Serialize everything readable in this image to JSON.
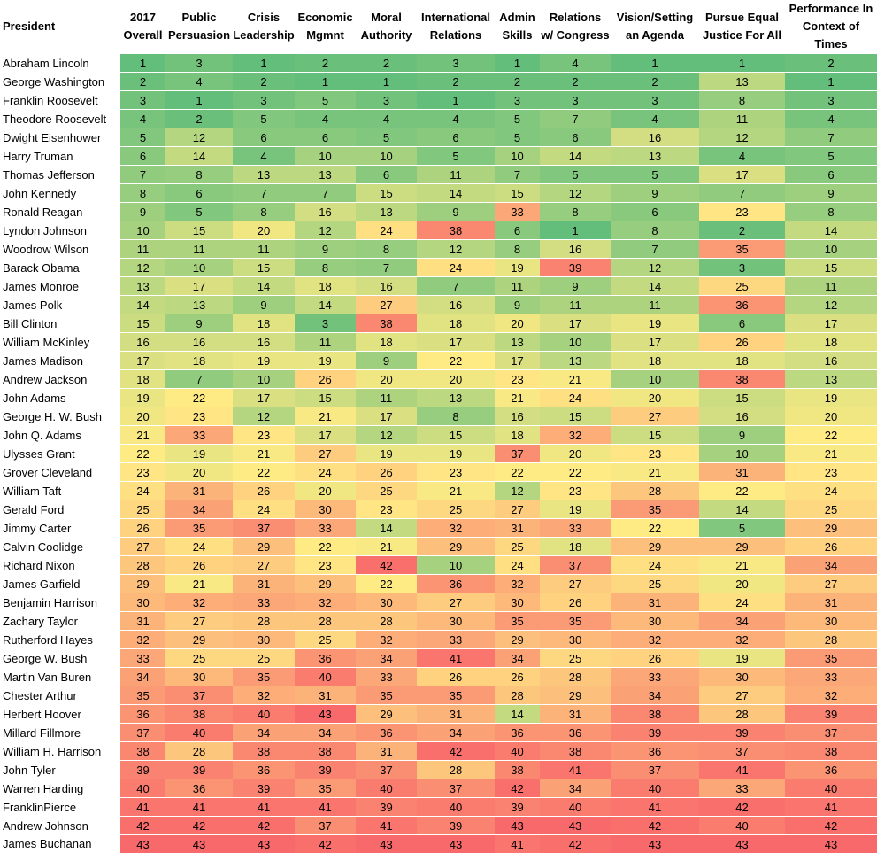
{
  "chart_data": {
    "type": "table",
    "row_header_label": "President",
    "columns": [
      [
        "2017",
        "Overall"
      ],
      [
        "Public",
        "Persuasion"
      ],
      [
        "Crisis",
        "Leadership"
      ],
      [
        "Economic",
        "Mgmnt"
      ],
      [
        "Moral",
        "Authority"
      ],
      [
        "International",
        "Relations"
      ],
      [
        "Admin",
        "Skills"
      ],
      [
        "Relations",
        "w/ Congress"
      ],
      [
        "Vision/Setting",
        "an Agenda"
      ],
      [
        "Pursue Equal",
        "Justice For All"
      ],
      [
        "Performance In",
        "Context of Times"
      ]
    ],
    "rows": [
      {
        "name": "Abraham Lincoln",
        "values": [
          1,
          3,
          1,
          2,
          2,
          3,
          1,
          4,
          1,
          1,
          2
        ]
      },
      {
        "name": "George Washington",
        "values": [
          2,
          4,
          2,
          1,
          1,
          2,
          2,
          2,
          2,
          13,
          1
        ]
      },
      {
        "name": "Franklin Roosevelt",
        "values": [
          3,
          1,
          3,
          5,
          3,
          1,
          3,
          3,
          3,
          8,
          3
        ]
      },
      {
        "name": "Theodore Roosevelt",
        "values": [
          4,
          2,
          5,
          4,
          4,
          4,
          5,
          7,
          4,
          11,
          4
        ]
      },
      {
        "name": "Dwight Eisenhower",
        "values": [
          5,
          12,
          6,
          6,
          5,
          6,
          5,
          6,
          16,
          12,
          7
        ]
      },
      {
        "name": "Harry Truman",
        "values": [
          6,
          14,
          4,
          10,
          10,
          5,
          10,
          14,
          13,
          4,
          5
        ]
      },
      {
        "name": "Thomas Jefferson",
        "values": [
          7,
          8,
          13,
          13,
          6,
          11,
          7,
          5,
          5,
          17,
          6
        ]
      },
      {
        "name": "John Kennedy",
        "values": [
          8,
          6,
          7,
          7,
          15,
          14,
          15,
          12,
          9,
          7,
          9
        ]
      },
      {
        "name": "Ronald Reagan",
        "values": [
          9,
          5,
          8,
          16,
          13,
          9,
          33,
          8,
          6,
          23,
          8
        ]
      },
      {
        "name": "Lyndon Johnson",
        "values": [
          10,
          15,
          20,
          12,
          24,
          38,
          6,
          1,
          8,
          2,
          14
        ]
      },
      {
        "name": "Woodrow Wilson",
        "values": [
          11,
          11,
          11,
          9,
          8,
          12,
          8,
          16,
          7,
          35,
          10
        ]
      },
      {
        "name": "Barack Obama",
        "values": [
          12,
          10,
          15,
          8,
          7,
          24,
          19,
          39,
          12,
          3,
          15
        ]
      },
      {
        "name": "James Monroe",
        "values": [
          13,
          17,
          14,
          18,
          16,
          7,
          11,
          9,
          14,
          25,
          11
        ]
      },
      {
        "name": "James Polk",
        "values": [
          14,
          13,
          9,
          14,
          27,
          16,
          9,
          11,
          11,
          36,
          12
        ]
      },
      {
        "name": "Bill Clinton",
        "values": [
          15,
          9,
          18,
          3,
          38,
          18,
          20,
          17,
          19,
          6,
          17
        ]
      },
      {
        "name": "William McKinley",
        "values": [
          16,
          16,
          16,
          11,
          18,
          17,
          13,
          10,
          17,
          26,
          18
        ]
      },
      {
        "name": "James Madison",
        "values": [
          17,
          18,
          19,
          19,
          9,
          22,
          17,
          13,
          18,
          18,
          16
        ]
      },
      {
        "name": "Andrew Jackson",
        "values": [
          18,
          7,
          10,
          26,
          20,
          20,
          23,
          21,
          10,
          38,
          13
        ]
      },
      {
        "name": "John Adams",
        "values": [
          19,
          22,
          17,
          15,
          11,
          13,
          21,
          24,
          20,
          15,
          19
        ]
      },
      {
        "name": "George H. W. Bush",
        "values": [
          20,
          23,
          12,
          21,
          17,
          8,
          16,
          15,
          27,
          16,
          20
        ]
      },
      {
        "name": "John Q. Adams",
        "values": [
          21,
          33,
          23,
          17,
          12,
          15,
          18,
          32,
          15,
          9,
          22
        ]
      },
      {
        "name": "Ulysses Grant",
        "values": [
          22,
          19,
          21,
          27,
          19,
          19,
          37,
          20,
          23,
          10,
          21
        ]
      },
      {
        "name": "Grover Cleveland",
        "values": [
          23,
          20,
          22,
          24,
          26,
          23,
          22,
          22,
          21,
          31,
          23
        ]
      },
      {
        "name": "William Taft",
        "values": [
          24,
          31,
          26,
          20,
          25,
          21,
          12,
          23,
          28,
          22,
          24
        ]
      },
      {
        "name": "Gerald Ford",
        "values": [
          25,
          34,
          24,
          30,
          23,
          25,
          27,
          19,
          35,
          14,
          25
        ]
      },
      {
        "name": "Jimmy Carter",
        "values": [
          26,
          35,
          37,
          33,
          14,
          32,
          31,
          33,
          22,
          5,
          29
        ]
      },
      {
        "name": "Calvin Coolidge",
        "values": [
          27,
          24,
          29,
          22,
          21,
          29,
          25,
          18,
          29,
          29,
          26
        ]
      },
      {
        "name": "Richard Nixon",
        "values": [
          28,
          26,
          27,
          23,
          42,
          10,
          24,
          37,
          24,
          21,
          34
        ]
      },
      {
        "name": "James Garfield",
        "values": [
          29,
          21,
          31,
          29,
          22,
          36,
          32,
          27,
          25,
          20,
          27
        ]
      },
      {
        "name": "Benjamin Harrison",
        "values": [
          30,
          32,
          33,
          32,
          30,
          27,
          30,
          26,
          31,
          24,
          31
        ]
      },
      {
        "name": "Zachary Taylor",
        "values": [
          31,
          27,
          28,
          28,
          28,
          30,
          35,
          35,
          30,
          34,
          30
        ]
      },
      {
        "name": "Rutherford Hayes",
        "values": [
          32,
          29,
          30,
          25,
          32,
          33,
          29,
          30,
          32,
          32,
          28
        ]
      },
      {
        "name": "George W. Bush",
        "values": [
          33,
          25,
          25,
          36,
          34,
          41,
          34,
          25,
          26,
          19,
          35
        ]
      },
      {
        "name": "Martin Van Buren",
        "values": [
          34,
          30,
          35,
          40,
          33,
          26,
          26,
          28,
          33,
          30,
          33
        ]
      },
      {
        "name": "Chester Arthur",
        "values": [
          35,
          37,
          32,
          31,
          35,
          35,
          28,
          29,
          34,
          27,
          32
        ]
      },
      {
        "name": "Herbert Hoover",
        "values": [
          36,
          38,
          40,
          43,
          29,
          31,
          14,
          31,
          38,
          28,
          39
        ]
      },
      {
        "name": "Millard Fillmore",
        "values": [
          37,
          40,
          34,
          34,
          36,
          34,
          36,
          36,
          39,
          39,
          37
        ]
      },
      {
        "name": "William H. Harrison",
        "values": [
          38,
          28,
          38,
          38,
          31,
          42,
          40,
          38,
          36,
          37,
          38
        ]
      },
      {
        "name": "John Tyler",
        "values": [
          39,
          39,
          36,
          39,
          37,
          28,
          38,
          41,
          37,
          41,
          36
        ]
      },
      {
        "name": "Warren Harding",
        "values": [
          40,
          36,
          39,
          35,
          40,
          37,
          42,
          34,
          40,
          33,
          40
        ]
      },
      {
        "name": "FranklinPierce",
        "values": [
          41,
          41,
          41,
          41,
          39,
          40,
          39,
          40,
          41,
          42,
          41
        ]
      },
      {
        "name": "Andrew Johnson",
        "values": [
          42,
          42,
          42,
          37,
          41,
          39,
          43,
          43,
          42,
          40,
          42
        ]
      },
      {
        "name": "James Buchanan",
        "values": [
          43,
          43,
          43,
          42,
          43,
          43,
          41,
          42,
          43,
          43,
          43
        ]
      }
    ],
    "value_range": [
      1,
      43
    ],
    "color_scale": {
      "low": "#63be7b",
      "mid": "#ffeb84",
      "high": "#f8696b"
    }
  }
}
